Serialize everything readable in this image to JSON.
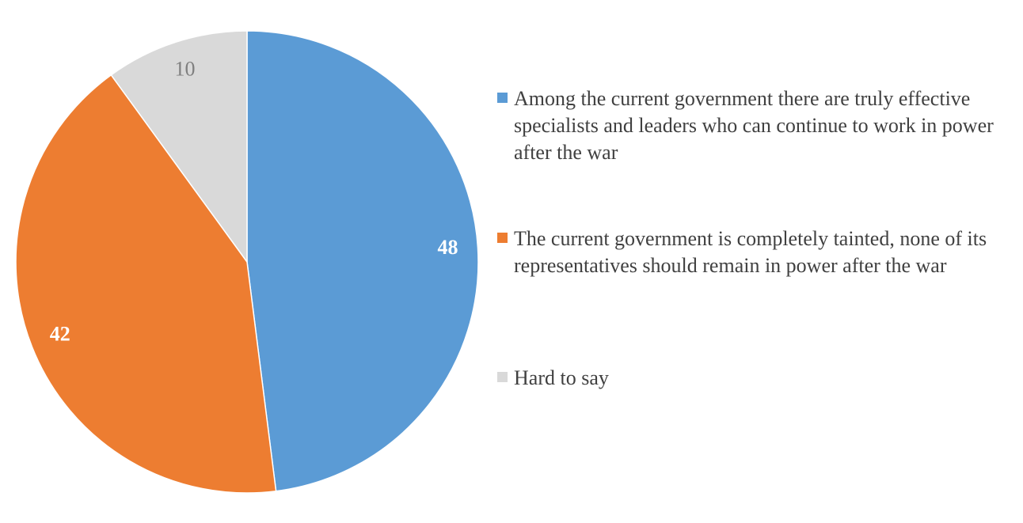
{
  "chart_data": {
    "type": "pie",
    "categories": [
      "Among the current government there are truly effective specialists and leaders who can continue to work in power after the war",
      "The current government is completely tainted, none of its representatives should remain in power after the war",
      "Hard to say"
    ],
    "values": [
      48,
      42,
      10
    ],
    "colors": [
      "#5b9bd5",
      "#ed7d31",
      "#d9d9d9"
    ],
    "legend": "right"
  }
}
